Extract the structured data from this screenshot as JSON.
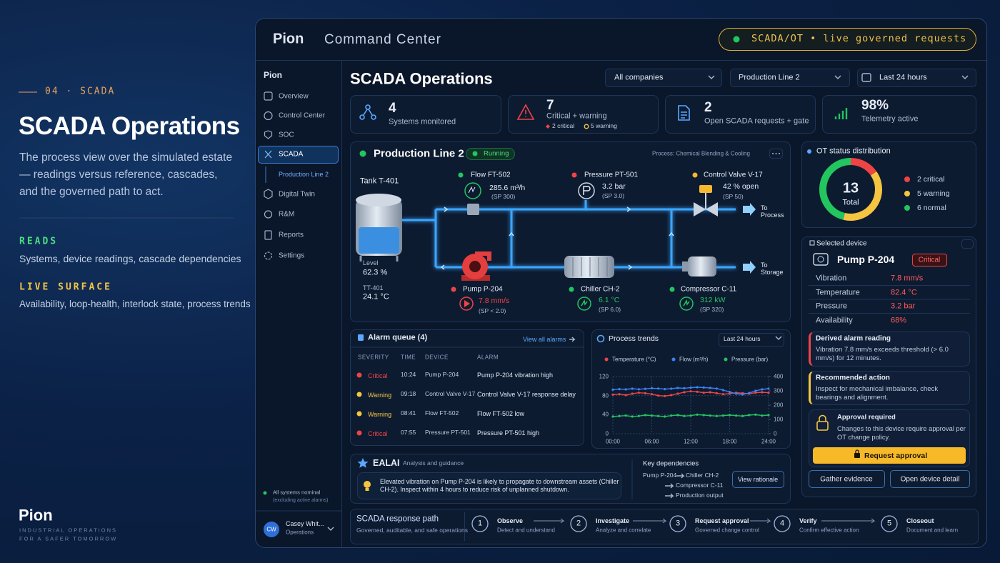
{
  "left": {
    "section": "04 · SCADA",
    "title": "SCADA Operations",
    "description": "The process view over the simulated estate — readings versus reference, cascades, and the governed path to act.",
    "reads_label": "READS",
    "reads": "Systems, device readings, cascade dependencies",
    "live_label": "LIVE SURFACE",
    "live": "Availability, loop-health, interlock state, process trends",
    "brand": "Pion",
    "tagline": [
      "INDUSTRIAL OPERATIONS",
      "FOR A SAFER TOMORROW"
    ]
  },
  "header": {
    "brand": "Pion",
    "product": "Command Center",
    "badge": "SCADA/OT • live governed requests"
  },
  "sidebar": {
    "title": "Pion",
    "items": [
      "Overview",
      "Control Center",
      "SOC",
      "SCADA",
      "Digital Twin",
      "R&M",
      "Reports",
      "Settings"
    ],
    "subitem": "Production Line 2",
    "status": "All systems nominal",
    "status_note": "(excluding active alarms)",
    "user_initials": "CW",
    "user_name": "Casey Whit...",
    "user_role": "Operations"
  },
  "page": {
    "title": "SCADA Operations",
    "filters": [
      "All companies",
      "Production Line 2",
      "Last 24 hours"
    ]
  },
  "kpis": [
    {
      "value": "4",
      "label": "Systems monitored"
    },
    {
      "value": "7",
      "label": "Critical + warning",
      "critical": "2 critical",
      "warning": "5 warning"
    },
    {
      "value": "2",
      "label": "Open SCADA requests + gate"
    },
    {
      "value": "98%",
      "label": "Telemetry active"
    }
  ],
  "process": {
    "title": "Production Line 2",
    "status": "Running",
    "subtitle": "Process: Chemical Blending & Cooling",
    "tank": {
      "name": "Tank T-401",
      "level_label": "Level",
      "level": "62.3 %",
      "temp_label": "TT-401",
      "temp": "24.1 °C"
    },
    "devices": [
      {
        "name": "Flow FT-502",
        "reading": "285.6 m³/h",
        "sp": "(SP 300)",
        "color": "#22c55e"
      },
      {
        "name": "Pressure PT-501",
        "reading": "3.2 bar",
        "sp": "(SP 3.0)",
        "color": "#ef4444"
      },
      {
        "name": "Control Valve V-17",
        "reading": "42 % open",
        "sp": "(SP 50)",
        "color": "#f5b82e"
      },
      {
        "name": "Pump P-204",
        "reading": "7.8 mm/s",
        "sp": "(SP < 2.0)",
        "color": "#ef4444"
      },
      {
        "name": "Chiller CH-2",
        "reading": "6.1 °C",
        "sp": "(SP 6.0)",
        "color": "#22c55e"
      },
      {
        "name": "Compressor C-11",
        "reading": "312 kW",
        "sp": "(SP 320)",
        "color": "#22c55e"
      }
    ],
    "outlets": [
      "To Process",
      "To Storage"
    ]
  },
  "ot_status": {
    "title": "OT status distribution",
    "total": 13,
    "total_label": "Total",
    "segments": [
      {
        "label": "2 critical",
        "value": 2,
        "color": "#ef4444"
      },
      {
        "label": "5 warning",
        "value": 5,
        "color": "#f5c542"
      },
      {
        "label": "6 normal",
        "value": 6,
        "color": "#22c55e"
      }
    ]
  },
  "device": {
    "header": "Selected device",
    "name": "Pump P-204",
    "severity": "Critical",
    "readings": [
      [
        "Vibration",
        "7.8 mm/s"
      ],
      [
        "Temperature",
        "82.4 °C"
      ],
      [
        "Pressure",
        "3.2 bar"
      ],
      [
        "Availability",
        "68%"
      ]
    ],
    "derived_title": "Derived alarm reading",
    "derived_text": "Vibration 7.8 mm/s exceeds threshold (> 6.0 mm/s) for 12 minutes.",
    "recommended_title": "Recommended action",
    "recommended_text": "Inspect for mechanical imbalance, check bearings and alignment.",
    "approval_title": "Approval required",
    "approval_text": "Changes to this device require approval per OT change policy.",
    "approval_button": "Request approval",
    "buttons": [
      "Gather evidence",
      "Open device detail"
    ]
  },
  "alarms": {
    "title": "Alarm queue (4)",
    "link": "View all alarms",
    "columns": [
      "SEVERITY",
      "TIME",
      "DEVICE",
      "ALARM"
    ],
    "rows": [
      {
        "severity": "Critical",
        "color": "#ef4444",
        "time": "10:24",
        "device": "Pump P-204",
        "alarm": "Pump P-204 vibration high"
      },
      {
        "severity": "Warning",
        "color": "#f5c542",
        "time": "09:18",
        "device": "Control Valve V-17",
        "alarm": "Control Valve V-17 response delay"
      },
      {
        "severity": "Warning",
        "color": "#f5c542",
        "time": "08:41",
        "device": "Flow FT-502",
        "alarm": "Flow FT-502 low"
      },
      {
        "severity": "Critical",
        "color": "#ef4444",
        "time": "07:55",
        "device": "Pressure PT-501",
        "alarm": "Pressure PT-501 high"
      }
    ]
  },
  "trends": {
    "title": "Process trends",
    "range": "Last 24 hours",
    "chart": {
      "type": "line",
      "x": [
        0,
        1,
        2,
        3,
        4,
        5,
        6,
        7,
        8,
        9,
        10,
        11,
        12,
        13,
        14,
        15,
        16,
        17,
        18,
        19,
        20,
        21,
        22,
        23,
        24
      ],
      "xlim": [
        0,
        24
      ],
      "xticks": [
        {
          "value": 0,
          "label": "00:00"
        },
        {
          "value": 6,
          "label": "06:00"
        },
        {
          "value": 12,
          "label": "12:00"
        },
        {
          "value": 18,
          "label": "18:00"
        },
        {
          "value": 24,
          "label": "24:00"
        }
      ],
      "ylim": [
        0,
        120
      ],
      "yticks": [
        0,
        40,
        80,
        120
      ],
      "y2lim": [
        0,
        400
      ],
      "y2ticks": [
        0,
        100,
        200,
        300,
        400
      ],
      "grid": true,
      "series": [
        {
          "name": "Temperature (°C)",
          "color": "#ef4444",
          "values": [
            82,
            83,
            81,
            84,
            86,
            85,
            83,
            80,
            79,
            81,
            84,
            87,
            89,
            88,
            86,
            87,
            85,
            83,
            84,
            86,
            85,
            84,
            86,
            87,
            86
          ]
        },
        {
          "name": "Flow (m³/h)",
          "color": "#3b82f6",
          "axis": "y2",
          "values": [
            308,
            312,
            310,
            315,
            311,
            314,
            318,
            316,
            312,
            315,
            320,
            318,
            322,
            325,
            323,
            320,
            316,
            305,
            292,
            280,
            275,
            285,
            300,
            310,
            315
          ]
        },
        {
          "name": "Pressure (bar)",
          "color": "#22c55e",
          "values": [
            36,
            37,
            38,
            36,
            37,
            39,
            38,
            37,
            36,
            38,
            39,
            37,
            38,
            40,
            39,
            38,
            37,
            38,
            39,
            38,
            37,
            39,
            40,
            38,
            39
          ]
        }
      ]
    }
  },
  "ai": {
    "title": "EALAI",
    "subtitle": "Analysis and guidance",
    "message": "Elevated vibration on Pump P-204 is likely to propagate to downstream assets (Chiller CH-2). Inspect within 4 hours to reduce risk of unplanned shutdown.",
    "deps_title": "Key dependencies",
    "deps": [
      "Pump P-204",
      "Chiller CH-2",
      "Compressor C-11",
      "Production output"
    ],
    "button": "View rationale"
  },
  "path": {
    "title": "SCADA response path",
    "subtitle": "Governed, auditable, and safe operations",
    "steps": [
      {
        "n": "1",
        "title": "Observe",
        "text": "Detect and understand"
      },
      {
        "n": "2",
        "title": "Investigate",
        "text": "Analyze and correlate"
      },
      {
        "n": "3",
        "title": "Request approval",
        "text": "Governed change control"
      },
      {
        "n": "4",
        "title": "Verify",
        "text": "Confirm effective action"
      },
      {
        "n": "5",
        "title": "Closeout",
        "text": "Document and learn"
      }
    ]
  }
}
